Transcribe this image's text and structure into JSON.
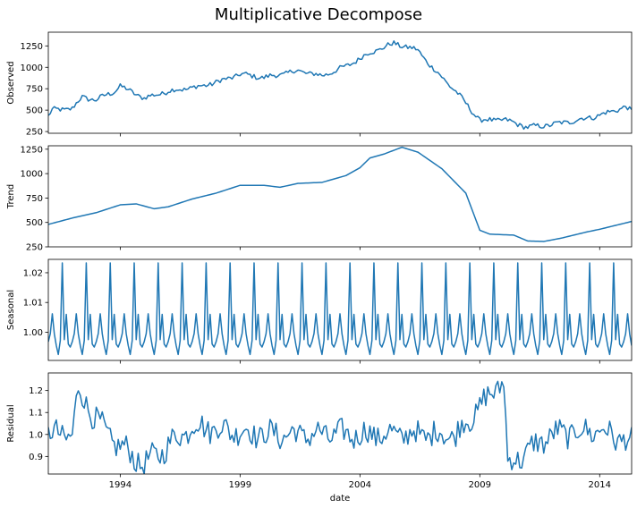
{
  "chart_data": {
    "type": "line",
    "title": "Multiplicative Decompose",
    "xlabel": "date",
    "x_start": "1991-01",
    "x_end": "2015-05",
    "x_range": [
      "1991-01",
      "2015-05"
    ],
    "x_ticks": [
      {
        "label": "1994",
        "date": "1994-01"
      },
      {
        "label": "1999",
        "date": "1999-01"
      },
      {
        "label": "2004",
        "date": "2004-01"
      },
      {
        "label": "2009",
        "date": "2009-01"
      },
      {
        "label": "2014",
        "date": "2014-01"
      }
    ],
    "frequency": "monthly",
    "grid": false,
    "subplots": [
      {
        "ylabel": "Observed",
        "ylim": [
          230,
          1410
        ],
        "yticks": [
          250,
          500,
          750,
          1000,
          1250
        ],
        "ytick_labels": [
          "250",
          "500",
          "750",
          "1000",
          "1250"
        ],
        "anchors": [
          [
            "1991-01",
            430
          ],
          [
            "1991-03",
            500
          ],
          [
            "1992-01",
            520
          ],
          [
            "1992-06",
            650
          ],
          [
            "1993-01",
            620
          ],
          [
            "1993-10",
            720
          ],
          [
            "1994-01",
            780
          ],
          [
            "1995-01",
            640
          ],
          [
            "1996-01",
            720
          ],
          [
            "1997-06",
            780
          ],
          [
            "1998-06",
            860
          ],
          [
            "1999-01",
            920
          ],
          [
            "2000-01",
            880
          ],
          [
            "2001-06",
            960
          ],
          [
            "2002-06",
            900
          ],
          [
            "2003-06",
            1010
          ],
          [
            "2004-06",
            1170
          ],
          [
            "2005-06",
            1280
          ],
          [
            "2006-06",
            1200
          ],
          [
            "2007-01",
            1000
          ],
          [
            "2008-01",
            720
          ],
          [
            "2009-01",
            380
          ],
          [
            "2010-01",
            390
          ],
          [
            "2011-01",
            300
          ],
          [
            "2012-01",
            330
          ],
          [
            "2013-01",
            380
          ],
          [
            "2014-01",
            440
          ],
          [
            "2015-02",
            540
          ],
          [
            "2015-05",
            480
          ]
        ],
        "noise": 28
      },
      {
        "ylabel": "Trend",
        "ylim": [
          250,
          1285
        ],
        "yticks": [
          250,
          500,
          750,
          1000,
          1250
        ],
        "ytick_labels": [
          "250",
          "500",
          "750",
          "1000",
          "1250"
        ],
        "anchors": [
          [
            "1991-01",
            480
          ],
          [
            "1992-01",
            545
          ],
          [
            "1993-01",
            600
          ],
          [
            "1994-01",
            680
          ],
          [
            "1994-09",
            690
          ],
          [
            "1995-06",
            640
          ],
          [
            "1996-01",
            660
          ],
          [
            "1997-01",
            740
          ],
          [
            "1998-01",
            800
          ],
          [
            "1999-01",
            880
          ],
          [
            "2000-01",
            880
          ],
          [
            "2000-09",
            860
          ],
          [
            "2001-06",
            900
          ],
          [
            "2002-06",
            910
          ],
          [
            "2003-06",
            980
          ],
          [
            "2004-01",
            1060
          ],
          [
            "2004-06",
            1160
          ],
          [
            "2005-01",
            1200
          ],
          [
            "2005-10",
            1270
          ],
          [
            "2006-06",
            1220
          ],
          [
            "2007-06",
            1050
          ],
          [
            "2008-06",
            800
          ],
          [
            "2009-01",
            420
          ],
          [
            "2009-06",
            380
          ],
          [
            "2010-06",
            370
          ],
          [
            "2011-01",
            310
          ],
          [
            "2011-09",
            305
          ],
          [
            "2012-06",
            340
          ],
          [
            "2013-06",
            400
          ],
          [
            "2014-01",
            430
          ],
          [
            "2015-05",
            510
          ]
        ],
        "noise": 0
      },
      {
        "ylabel": "Seasonal",
        "ylim": [
          0.9905,
          1.0245
        ],
        "yticks": [
          1.0,
          1.01,
          1.02
        ],
        "ytick_labels": [
          "1.00",
          "1.01",
          "1.02"
        ],
        "seasonal_pattern": [
          0.9968,
          0.9995,
          1.0062,
          0.9995,
          0.9955,
          0.9925,
          0.9972,
          1.0233,
          0.9975,
          1.006,
          0.996,
          0.995
        ],
        "noise": 0
      },
      {
        "ylabel": "Residual",
        "ylim": [
          0.82,
          1.28
        ],
        "yticks": [
          0.9,
          1.0,
          1.1,
          1.2
        ],
        "ytick_labels": [
          "0.9",
          "1.0",
          "1.1",
          "1.2"
        ],
        "anchors": [
          [
            "1991-01",
            1.0
          ],
          [
            "1992-01",
            1.0
          ],
          [
            "1992-04",
            1.2
          ],
          [
            "1993-06",
            1.0
          ],
          [
            "1995-01",
            0.86
          ],
          [
            "1997-01",
            1.04
          ],
          [
            "2000-01",
            1.0
          ],
          [
            "2004-01",
            1.0
          ],
          [
            "2008-01",
            1.0
          ],
          [
            "2010-01",
            1.25
          ],
          [
            "2010-03",
            0.86
          ],
          [
            "2012-01",
            1.0
          ],
          [
            "2014-01",
            1.02
          ],
          [
            "2015-05",
            0.96
          ]
        ],
        "noise": 0.055
      }
    ]
  }
}
